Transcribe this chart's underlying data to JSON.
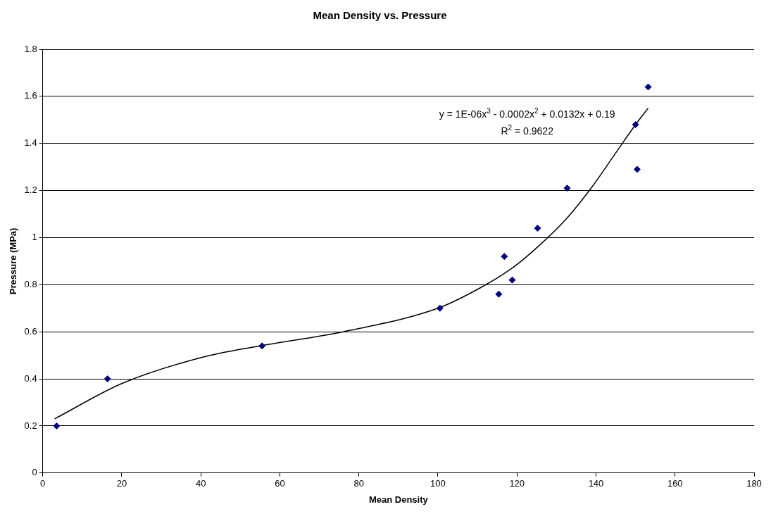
{
  "chart_data": {
    "type": "scatter",
    "title": "Mean Density vs. Pressure",
    "xlabel": "Mean Density",
    "ylabel": "Pressure (MPa)",
    "xlim": [
      0,
      180
    ],
    "xticks": [
      0,
      20,
      40,
      60,
      80,
      100,
      120,
      140,
      160,
      180
    ],
    "ylim": [
      0,
      1.8
    ],
    "yticks": [
      0,
      0.2,
      0.4,
      0.6,
      0.8,
      1,
      1.2,
      1.4,
      1.6,
      1.8
    ],
    "grid": "y",
    "legend": false,
    "marker": "diamond",
    "series": [
      {
        "color": "#000080",
        "x": [
          3.5,
          16.4,
          55.5,
          100.5,
          115.4,
          116.8,
          118.8,
          125.2,
          132.7,
          150,
          150.4,
          153.2
        ],
        "values": [
          0.2,
          0.4,
          0.54,
          0.7,
          0.76,
          0.92,
          0.82,
          1.04,
          1.21,
          1.48,
          1.29,
          1.64
        ]
      },
      {
        "type": "line",
        "color": "#000000",
        "marker": "none",
        "x": [
          3,
          20,
          40,
          55,
          76,
          100,
          110,
          118.75,
          125.2,
          132.5,
          138.75,
          145,
          150,
          153.2
        ],
        "values": [
          0.23,
          0.38,
          0.49,
          0.54,
          0.6,
          0.7,
          0.78,
          0.87,
          0.96,
          1.08,
          1.21,
          1.36,
          1.48,
          1.55
        ]
      }
    ],
    "annotations": [
      "y = 1E-06x$^{3}$ - 0.0002x$^{2}$ + 0.0132x + 0.19",
      "R$^{2}$ = 0.9622"
    ]
  }
}
